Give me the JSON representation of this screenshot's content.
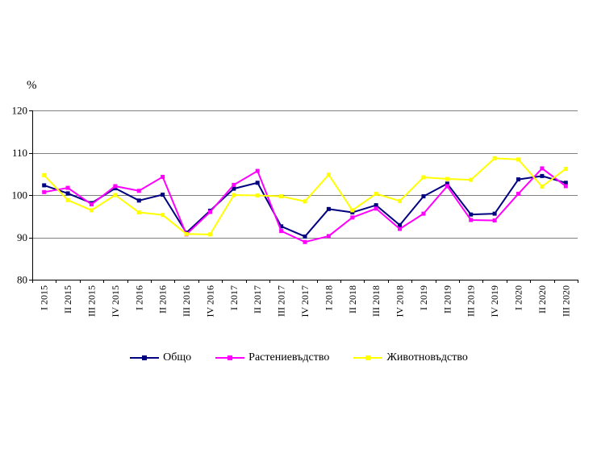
{
  "page": {
    "background": "#ffffff"
  },
  "chart_data": {
    "type": "line",
    "title": "",
    "xlabel": "",
    "ylabel": "%",
    "ylim": [
      80,
      120
    ],
    "yticks": [
      80,
      90,
      100,
      110,
      120
    ],
    "grid": true,
    "legend_position": "bottom",
    "axis_color": "#000000",
    "gridline_color": "#808080",
    "marker": "square",
    "categories": [
      "I 2015",
      "II 2015",
      "III 2015",
      "IV 2015",
      "I 2016",
      "II 2016",
      "III 2016",
      "IV 2016",
      "I 2017",
      "II 2017",
      "III 2017",
      "IV 2017",
      "I 2018",
      "II 2018",
      "III 2018",
      "IV 2018",
      "I 2019",
      "II 2019",
      "III 2019",
      "IV 2019",
      "I 2020",
      "II 2020",
      "III 2020"
    ],
    "series": [
      {
        "name": "Общо",
        "color": "#000080",
        "values": [
          102.3,
          100.4,
          98.1,
          101.6,
          98.7,
          100.1,
          91.1,
          96.3,
          101.5,
          102.9,
          92.6,
          90.2,
          96.7,
          95.9,
          97.6,
          92.9,
          99.7,
          102.7,
          95.4,
          95.6,
          103.7,
          104.5,
          102.9
        ]
      },
      {
        "name": "Растениевъдство",
        "color": "#FF00FF",
        "values": [
          100.7,
          101.7,
          97.8,
          102.1,
          101.0,
          104.3,
          90.7,
          96.0,
          102.4,
          105.7,
          91.5,
          88.9,
          90.3,
          94.7,
          96.8,
          92.0,
          95.6,
          102.1,
          94.1,
          94.0,
          100.3,
          106.3,
          102.1
        ]
      },
      {
        "name": "Животновъдство",
        "color": "#FFFF00",
        "values": [
          104.7,
          98.8,
          96.4,
          100.0,
          95.9,
          95.3,
          90.8,
          90.7,
          100.0,
          99.9,
          99.7,
          98.5,
          104.8,
          96.4,
          100.3,
          98.6,
          104.2,
          103.8,
          103.6,
          108.7,
          108.4,
          102.0,
          106.2
        ]
      }
    ]
  }
}
